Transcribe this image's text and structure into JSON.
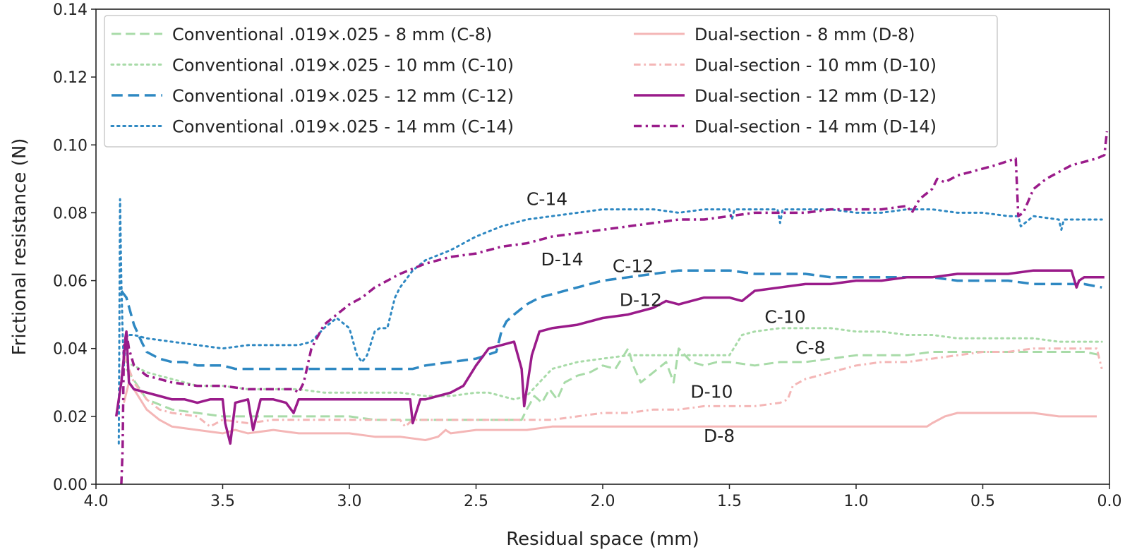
{
  "chart_data": {
    "type": "line",
    "title": "",
    "xlabel": "Residual space (mm)",
    "ylabel": "Frictional resistance (N)",
    "xlim": [
      4.0,
      0.0
    ],
    "ylim": [
      0.0,
      0.14
    ],
    "x_reversed": true,
    "xticks": [
      4.0,
      3.5,
      3.0,
      2.5,
      2.0,
      1.5,
      1.0,
      0.5,
      0.0
    ],
    "xtick_labels": [
      "4.0",
      "3.5",
      "3.0",
      "2.5",
      "2.0",
      "1.5",
      "1.0",
      "0.5",
      "0.0"
    ],
    "yticks": [
      0.0,
      0.02,
      0.04,
      0.06,
      0.08,
      0.1,
      0.12,
      0.14
    ],
    "ytick_labels": [
      "0.00",
      "0.02",
      "0.04",
      "0.06",
      "0.08",
      "0.10",
      "0.12",
      "0.14"
    ],
    "legend_position": "top-left",
    "series": [
      {
        "name": "Conventional .019×.025 -  8 mm  (C-8)",
        "short": "C-8",
        "color": "#a8dba8",
        "dash": "dashed",
        "width": 3,
        "x": [
          3.88,
          3.8,
          3.7,
          3.6,
          3.5,
          3.4,
          3.3,
          3.2,
          3.1,
          3.0,
          2.9,
          2.8,
          2.7,
          2.6,
          2.5,
          2.4,
          2.35,
          2.32,
          2.3,
          2.27,
          2.24,
          2.21,
          2.18,
          2.15,
          2.1,
          2.05,
          2.0,
          1.95,
          1.9,
          1.88,
          1.85,
          1.8,
          1.75,
          1.72,
          1.7,
          1.65,
          1.6,
          1.55,
          1.5,
          1.4,
          1.3,
          1.2,
          1.1,
          1.0,
          0.9,
          0.8,
          0.7,
          0.6,
          0.5,
          0.4,
          0.3,
          0.2,
          0.1,
          0.03
        ],
        "y": [
          0.034,
          0.025,
          0.022,
          0.021,
          0.02,
          0.02,
          0.02,
          0.02,
          0.02,
          0.02,
          0.019,
          0.019,
          0.019,
          0.019,
          0.019,
          0.019,
          0.019,
          0.019,
          0.022,
          0.026,
          0.024,
          0.028,
          0.025,
          0.03,
          0.032,
          0.033,
          0.035,
          0.034,
          0.04,
          0.035,
          0.03,
          0.033,
          0.036,
          0.03,
          0.04,
          0.036,
          0.035,
          0.036,
          0.036,
          0.035,
          0.036,
          0.036,
          0.037,
          0.038,
          0.038,
          0.038,
          0.039,
          0.039,
          0.039,
          0.039,
          0.039,
          0.039,
          0.039,
          0.038
        ]
      },
      {
        "name": "Conventional .019×.025 - 10 mm (C-10)",
        "short": "C-10",
        "color": "#a8dba8",
        "dash": "dotted",
        "width": 3,
        "x": [
          3.88,
          3.8,
          3.7,
          3.6,
          3.5,
          3.4,
          3.3,
          3.2,
          3.1,
          3.0,
          2.9,
          2.8,
          2.7,
          2.6,
          2.5,
          2.45,
          2.4,
          2.35,
          2.3,
          2.25,
          2.2,
          2.1,
          2.0,
          1.9,
          1.8,
          1.7,
          1.6,
          1.5,
          1.45,
          1.4,
          1.3,
          1.2,
          1.1,
          1.0,
          0.9,
          0.8,
          0.7,
          0.6,
          0.5,
          0.4,
          0.3,
          0.2,
          0.1,
          0.03
        ],
        "y": [
          0.036,
          0.033,
          0.031,
          0.029,
          0.029,
          0.028,
          0.028,
          0.028,
          0.027,
          0.027,
          0.027,
          0.027,
          0.026,
          0.026,
          0.027,
          0.027,
          0.026,
          0.025,
          0.026,
          0.03,
          0.034,
          0.036,
          0.037,
          0.038,
          0.038,
          0.038,
          0.038,
          0.038,
          0.044,
          0.045,
          0.046,
          0.046,
          0.046,
          0.045,
          0.045,
          0.044,
          0.044,
          0.043,
          0.043,
          0.043,
          0.043,
          0.042,
          0.042,
          0.042
        ]
      },
      {
        "name": "Conventional .019×.025 - 12 mm (C-12)",
        "short": "C-12",
        "color": "#2e88c2",
        "dash": "dashed",
        "width": 3.5,
        "x": [
          3.9,
          3.88,
          3.85,
          3.82,
          3.8,
          3.75,
          3.7,
          3.65,
          3.6,
          3.55,
          3.5,
          3.45,
          3.4,
          3.3,
          3.2,
          3.1,
          3.0,
          2.9,
          2.8,
          2.75,
          2.7,
          2.6,
          2.5,
          2.42,
          2.4,
          2.38,
          2.35,
          2.3,
          2.25,
          2.2,
          2.1,
          2.0,
          1.9,
          1.8,
          1.7,
          1.6,
          1.5,
          1.4,
          1.3,
          1.2,
          1.1,
          1.0,
          0.9,
          0.8,
          0.7,
          0.6,
          0.5,
          0.4,
          0.3,
          0.2,
          0.1,
          0.03
        ],
        "y": [
          0.057,
          0.055,
          0.047,
          0.042,
          0.039,
          0.037,
          0.036,
          0.036,
          0.035,
          0.035,
          0.035,
          0.034,
          0.034,
          0.034,
          0.034,
          0.034,
          0.034,
          0.034,
          0.034,
          0.034,
          0.035,
          0.036,
          0.037,
          0.039,
          0.045,
          0.048,
          0.05,
          0.053,
          0.055,
          0.056,
          0.058,
          0.06,
          0.061,
          0.062,
          0.063,
          0.063,
          0.063,
          0.062,
          0.062,
          0.062,
          0.061,
          0.061,
          0.061,
          0.061,
          0.061,
          0.06,
          0.06,
          0.06,
          0.059,
          0.059,
          0.059,
          0.058
        ]
      },
      {
        "name": "Conventional .019×.025 - 14 mm (C-14)",
        "short": "C-14",
        "color": "#2e88c2",
        "dash": "dotted",
        "width": 3,
        "x": [
          3.91,
          3.905,
          3.9,
          3.895,
          3.89,
          3.88,
          3.85,
          3.8,
          3.7,
          3.6,
          3.5,
          3.4,
          3.3,
          3.2,
          3.15,
          3.1,
          3.05,
          3.0,
          2.97,
          2.95,
          2.93,
          2.9,
          2.88,
          2.85,
          2.82,
          2.8,
          2.75,
          2.7,
          2.6,
          2.5,
          2.4,
          2.3,
          2.2,
          2.1,
          2.0,
          1.9,
          1.8,
          1.7,
          1.6,
          1.55,
          1.5,
          1.49,
          1.48,
          1.4,
          1.31,
          1.3,
          1.29,
          1.2,
          1.1,
          1.0,
          0.9,
          0.8,
          0.7,
          0.6,
          0.5,
          0.4,
          0.36,
          0.35,
          0.3,
          0.2,
          0.19,
          0.18,
          0.15,
          0.1,
          0.05,
          0.03
        ],
        "y": [
          0.012,
          0.084,
          0.06,
          0.045,
          0.035,
          0.044,
          0.044,
          0.043,
          0.042,
          0.041,
          0.04,
          0.041,
          0.041,
          0.041,
          0.042,
          0.046,
          0.049,
          0.046,
          0.038,
          0.036,
          0.038,
          0.045,
          0.046,
          0.046,
          0.055,
          0.058,
          0.063,
          0.066,
          0.069,
          0.073,
          0.076,
          0.078,
          0.079,
          0.08,
          0.081,
          0.081,
          0.081,
          0.08,
          0.081,
          0.081,
          0.081,
          0.078,
          0.081,
          0.081,
          0.081,
          0.077,
          0.081,
          0.081,
          0.081,
          0.08,
          0.08,
          0.081,
          0.081,
          0.08,
          0.08,
          0.079,
          0.079,
          0.076,
          0.079,
          0.078,
          0.075,
          0.078,
          0.078,
          0.078,
          0.078,
          0.078
        ]
      },
      {
        "name": "Dual-section -  8 mm  (D-8)",
        "short": "D-8",
        "color": "#f4b6b6",
        "dash": "solid",
        "width": 3,
        "x": [
          3.89,
          3.87,
          3.85,
          3.8,
          3.75,
          3.7,
          3.6,
          3.5,
          3.45,
          3.4,
          3.3,
          3.2,
          3.1,
          3.0,
          2.9,
          2.8,
          2.7,
          2.65,
          2.62,
          2.6,
          2.5,
          2.4,
          2.3,
          2.2,
          2.1,
          2.0,
          1.9,
          1.8,
          1.7,
          1.6,
          1.5,
          1.4,
          1.3,
          1.2,
          1.1,
          1.0,
          0.9,
          0.8,
          0.72,
          0.7,
          0.65,
          0.6,
          0.55,
          0.5,
          0.4,
          0.3,
          0.2,
          0.1,
          0.05
        ],
        "y": [
          0.024,
          0.03,
          0.028,
          0.022,
          0.019,
          0.017,
          0.016,
          0.015,
          0.016,
          0.015,
          0.016,
          0.015,
          0.015,
          0.015,
          0.014,
          0.014,
          0.013,
          0.014,
          0.016,
          0.015,
          0.016,
          0.016,
          0.016,
          0.017,
          0.017,
          0.017,
          0.017,
          0.017,
          0.017,
          0.017,
          0.017,
          0.017,
          0.017,
          0.017,
          0.017,
          0.017,
          0.017,
          0.017,
          0.017,
          0.018,
          0.02,
          0.021,
          0.021,
          0.021,
          0.021,
          0.021,
          0.02,
          0.02,
          0.02
        ]
      },
      {
        "name": "Dual-section - 10 mm (D-10)",
        "short": "D-10",
        "color": "#f4b6b6",
        "dash": "dashdot",
        "width": 3,
        "x": [
          3.89,
          3.87,
          3.85,
          3.8,
          3.75,
          3.7,
          3.6,
          3.55,
          3.5,
          3.4,
          3.3,
          3.2,
          3.1,
          3.0,
          2.9,
          2.8,
          2.78,
          2.75,
          2.7,
          2.6,
          2.5,
          2.4,
          2.3,
          2.25,
          2.2,
          2.1,
          2.0,
          1.9,
          1.8,
          1.7,
          1.6,
          1.5,
          1.4,
          1.3,
          1.27,
          1.25,
          1.2,
          1.1,
          1.0,
          0.9,
          0.8,
          0.7,
          0.6,
          0.5,
          0.4,
          0.3,
          0.2,
          0.1,
          0.05,
          0.03
        ],
        "y": [
          0.038,
          0.034,
          0.03,
          0.025,
          0.022,
          0.021,
          0.02,
          0.017,
          0.019,
          0.018,
          0.019,
          0.019,
          0.019,
          0.019,
          0.019,
          0.019,
          0.017,
          0.019,
          0.019,
          0.019,
          0.019,
          0.019,
          0.019,
          0.019,
          0.019,
          0.02,
          0.021,
          0.021,
          0.022,
          0.022,
          0.023,
          0.023,
          0.023,
          0.024,
          0.025,
          0.029,
          0.031,
          0.033,
          0.035,
          0.036,
          0.036,
          0.037,
          0.038,
          0.039,
          0.039,
          0.04,
          0.04,
          0.04,
          0.04,
          0.034
        ]
      },
      {
        "name": "Dual-section - 12 mm (D-12)",
        "short": "D-12",
        "color": "#9a1b8a",
        "dash": "solid",
        "width": 3.5,
        "x": [
          3.92,
          3.9,
          3.88,
          3.87,
          3.85,
          3.8,
          3.75,
          3.7,
          3.65,
          3.6,
          3.55,
          3.5,
          3.49,
          3.47,
          3.45,
          3.4,
          3.38,
          3.35,
          3.3,
          3.25,
          3.22,
          3.2,
          3.1,
          3.05,
          3.0,
          2.95,
          2.9,
          2.8,
          2.76,
          2.75,
          2.72,
          2.7,
          2.65,
          2.6,
          2.55,
          2.5,
          2.45,
          2.4,
          2.35,
          2.32,
          2.31,
          2.28,
          2.25,
          2.2,
          2.1,
          2.0,
          1.9,
          1.8,
          1.75,
          1.7,
          1.6,
          1.5,
          1.45,
          1.4,
          1.3,
          1.2,
          1.1,
          1.0,
          0.9,
          0.8,
          0.7,
          0.6,
          0.5,
          0.4,
          0.3,
          0.2,
          0.15,
          0.13,
          0.12,
          0.1,
          0.05,
          0.02
        ],
        "y": [
          0.02,
          0.03,
          0.045,
          0.03,
          0.028,
          0.027,
          0.026,
          0.025,
          0.025,
          0.024,
          0.025,
          0.025,
          0.018,
          0.012,
          0.024,
          0.025,
          0.016,
          0.025,
          0.025,
          0.024,
          0.021,
          0.025,
          0.025,
          0.025,
          0.025,
          0.025,
          0.025,
          0.025,
          0.025,
          0.018,
          0.025,
          0.025,
          0.026,
          0.027,
          0.029,
          0.035,
          0.04,
          0.041,
          0.042,
          0.034,
          0.023,
          0.038,
          0.045,
          0.046,
          0.047,
          0.049,
          0.05,
          0.052,
          0.054,
          0.053,
          0.055,
          0.055,
          0.054,
          0.057,
          0.058,
          0.059,
          0.059,
          0.06,
          0.06,
          0.061,
          0.061,
          0.062,
          0.062,
          0.062,
          0.063,
          0.063,
          0.063,
          0.058,
          0.06,
          0.061,
          0.061,
          0.061
        ]
      },
      {
        "name": "Dual-section - 14 mm (D-14)",
        "short": "D-14",
        "color": "#9a1b8a",
        "dash": "dashdot",
        "width": 3.5,
        "x": [
          3.9,
          3.895,
          3.89,
          3.88,
          3.87,
          3.85,
          3.8,
          3.7,
          3.6,
          3.5,
          3.4,
          3.3,
          3.22,
          3.2,
          3.18,
          3.15,
          3.1,
          3.05,
          3.0,
          2.95,
          2.9,
          2.8,
          2.7,
          2.6,
          2.5,
          2.4,
          2.3,
          2.2,
          2.1,
          2.0,
          1.9,
          1.8,
          1.7,
          1.6,
          1.5,
          1.4,
          1.3,
          1.2,
          1.1,
          1.0,
          0.9,
          0.8,
          0.78,
          0.75,
          0.7,
          0.68,
          0.65,
          0.6,
          0.5,
          0.45,
          0.37,
          0.36,
          0.34,
          0.3,
          0.25,
          0.2,
          0.15,
          0.1,
          0.05,
          0.02,
          0.01
        ],
        "y": [
          0.0,
          0.01,
          0.04,
          0.045,
          0.04,
          0.035,
          0.032,
          0.03,
          0.029,
          0.029,
          0.028,
          0.028,
          0.028,
          0.027,
          0.03,
          0.04,
          0.047,
          0.05,
          0.053,
          0.055,
          0.058,
          0.062,
          0.065,
          0.067,
          0.068,
          0.07,
          0.071,
          0.073,
          0.074,
          0.075,
          0.076,
          0.077,
          0.078,
          0.078,
          0.079,
          0.08,
          0.08,
          0.08,
          0.081,
          0.081,
          0.081,
          0.082,
          0.08,
          0.084,
          0.087,
          0.09,
          0.089,
          0.091,
          0.093,
          0.094,
          0.096,
          0.079,
          0.08,
          0.087,
          0.09,
          0.092,
          0.094,
          0.095,
          0.096,
          0.097,
          0.104
        ]
      }
    ],
    "annotations": [
      {
        "text": "C-14",
        "x": 2.22,
        "y": 0.0823
      },
      {
        "text": "D-14",
        "x": 2.16,
        "y": 0.0645
      },
      {
        "text": "C-12",
        "x": 1.88,
        "y": 0.0625
      },
      {
        "text": "D-12",
        "x": 1.85,
        "y": 0.0525
      },
      {
        "text": "C-10",
        "x": 1.28,
        "y": 0.0475
      },
      {
        "text": "C-8",
        "x": 1.18,
        "y": 0.0385
      },
      {
        "text": "D-10",
        "x": 1.57,
        "y": 0.0255
      },
      {
        "text": "D-8",
        "x": 1.54,
        "y": 0.0125
      }
    ]
  }
}
